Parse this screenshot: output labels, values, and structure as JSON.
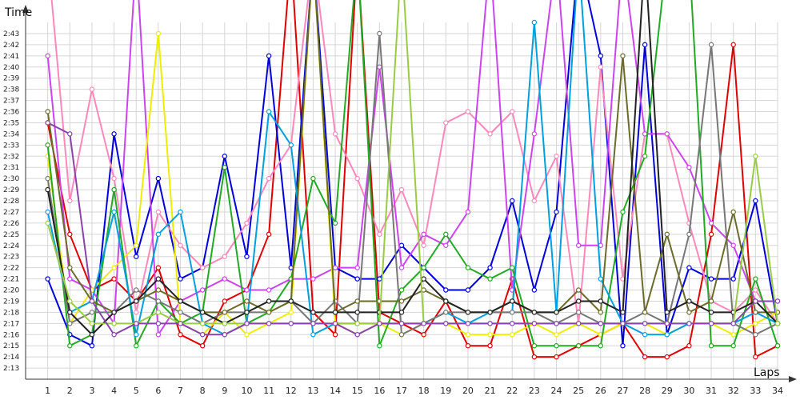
{
  "chart_data": {
    "type": "line",
    "ylabel": "Time",
    "xlabel": "Laps",
    "x": [
      1,
      2,
      3,
      4,
      5,
      6,
      7,
      8,
      9,
      10,
      11,
      12,
      13,
      14,
      15,
      16,
      17,
      18,
      19,
      20,
      21,
      22,
      23,
      24,
      25,
      26,
      27,
      28,
      29,
      30,
      31,
      32,
      33,
      34
    ],
    "xlim": [
      0,
      34
    ],
    "ylim": [
      "2:12",
      "2:44"
    ],
    "y_ticks": [
      "2:13",
      "2:14",
      "2:15",
      "2:16",
      "2:17",
      "2:18",
      "2:19",
      "2:20",
      "2:21",
      "2:22",
      "2:23",
      "2:24",
      "2:25",
      "2:26",
      "2:27",
      "2:28",
      "2:29",
      "2:30",
      "2:31",
      "2:32",
      "2:33",
      "2:34",
      "2:35",
      "2:36",
      "2:37",
      "2:38",
      "2:39",
      "2:40",
      "2:41",
      "2:42",
      "2:43"
    ],
    "grid": true,
    "series": [
      {
        "color": "#e00000",
        "values": [
          "2:35",
          "2:25",
          "2:20",
          "2:21",
          "2:19",
          "2:22",
          "2:16",
          "2:15",
          "2:19",
          "2:20",
          "2:25",
          "2:50",
          "2:18",
          "2:16",
          "2:50",
          "2:18",
          "2:17",
          "2:16",
          "2:19",
          "2:15",
          "2:15",
          "2:21",
          "2:14",
          "2:14",
          "2:15",
          "2:16",
          "2:17",
          "2:14",
          "2:14",
          "2:15",
          "2:25",
          "2:42",
          "2:14",
          "2:15"
        ]
      },
      {
        "color": "#0000dd",
        "values": [
          "2:21",
          "2:16",
          "2:15",
          "2:34",
          "2:23",
          "2:30",
          "2:21",
          "2:22",
          "2:32",
          "2:23",
          "2:41",
          "2:22",
          "2:50",
          "2:22",
          "2:21",
          "2:21",
          "2:24",
          "2:22",
          "2:20",
          "2:20",
          "2:22",
          "2:28",
          "2:20",
          "2:27",
          "2:50",
          "2:41",
          "2:15",
          "2:42",
          "2:16",
          "2:22",
          "2:21",
          "2:21",
          "2:28",
          "2:17"
        ]
      },
      {
        "color": "#ff88bb",
        "values": [
          "2:50",
          "2:28",
          "2:38",
          "2:30",
          "2:18",
          "2:27",
          "2:24",
          "2:22",
          "2:23",
          "2:26",
          "2:30",
          "2:33",
          "2:50",
          "2:34",
          "2:30",
          "2:25",
          "2:29",
          "2:24",
          "2:35",
          "2:36",
          "2:34",
          "2:36",
          "2:28",
          "2:32",
          "2:17",
          "2:40",
          "2:21",
          "2:34",
          "2:34",
          "2:26",
          "2:19",
          "2:18",
          "2:20",
          "2:17"
        ]
      },
      {
        "color": "#cc44ee",
        "values": [
          "2:41",
          "2:21",
          "2:20",
          "2:17",
          "2:50",
          "2:16",
          "2:19",
          "2:20",
          "2:21",
          "2:20",
          "2:20",
          "2:21",
          "2:21",
          "2:22",
          "2:22",
          "2:40",
          "2:22",
          "2:25",
          "2:24",
          "2:27",
          "2:50",
          "2:20",
          "2:34",
          "2:50",
          "2:24",
          "2:24",
          "2:50",
          "2:34",
          "2:34",
          "2:31",
          "2:26",
          "2:24",
          "2:19",
          "2:19"
        ]
      },
      {
        "color": "#eeee00",
        "values": [
          "2:32",
          "2:17",
          "2:20",
          "2:22",
          "2:24",
          "2:43",
          "2:17",
          "2:16",
          "2:18",
          "2:16",
          "2:17",
          "2:18",
          "2:50",
          "2:17",
          "2:16",
          "2:17",
          "2:16",
          "2:17",
          "2:17",
          "2:16",
          "2:16",
          "2:16",
          "2:17",
          "2:16",
          "2:17",
          "2:16",
          "2:17",
          "2:17",
          "2:16",
          "2:17",
          "2:17",
          "2:16",
          "2:17",
          "2:18"
        ]
      },
      {
        "color": "#22aa22",
        "values": [
          "2:33",
          "2:15",
          "2:16",
          "2:29",
          "2:15",
          "2:19",
          "2:17",
          "2:18",
          "2:31",
          "2:17",
          "2:18",
          "2:21",
          "2:30",
          "2:26",
          "2:50",
          "2:15",
          "2:20",
          "2:22",
          "2:25",
          "2:22",
          "2:21",
          "2:22",
          "2:15",
          "2:15",
          "2:15",
          "2:15",
          "2:27",
          "2:32",
          "2:50",
          "2:50",
          "2:15",
          "2:15",
          "2:21",
          "2:15"
        ]
      },
      {
        "color": "#00a0e0",
        "values": [
          "2:27",
          "2:18",
          "2:19",
          "2:27",
          "2:16",
          "2:25",
          "2:27",
          "2:17",
          "2:16",
          "2:17",
          "2:36",
          "2:33",
          "2:16",
          "2:17",
          "2:17",
          "2:17",
          "2:17",
          "2:17",
          "2:18",
          "2:17",
          "2:18",
          "2:18",
          "2:44",
          "2:18",
          "2:50",
          "2:21",
          "2:17",
          "2:16",
          "2:16",
          "2:17",
          "2:17",
          "2:17",
          "2:18",
          "2:17"
        ]
      },
      {
        "color": "#777777",
        "values": [
          "2:30",
          "2:17",
          "2:18",
          "2:18",
          "2:20",
          "2:19",
          "2:18",
          "2:17",
          "2:18",
          "2:18",
          "2:18",
          "2:19",
          "2:17",
          "2:19",
          "2:17",
          "2:43",
          "2:16",
          "2:17",
          "2:18",
          "2:18",
          "2:18",
          "2:18",
          "2:18",
          "2:17",
          "2:18",
          "2:17",
          "2:17",
          "2:18",
          "2:17",
          "2:25",
          "2:42",
          "2:17",
          "2:16",
          "2:17"
        ]
      },
      {
        "color": "#6b6b2a",
        "values": [
          "2:36",
          "2:22",
          "2:19",
          "2:18",
          "2:19",
          "2:20",
          "2:19",
          "2:18",
          "2:18",
          "2:19",
          "2:18",
          "2:19",
          "2:50",
          "2:18",
          "2:19",
          "2:19",
          "2:19",
          "2:20",
          "2:19",
          "2:18",
          "2:18",
          "2:19",
          "2:18",
          "2:18",
          "2:20",
          "2:18",
          "2:41",
          "2:18",
          "2:25",
          "2:18",
          "2:19",
          "2:27",
          "2:18",
          "2:18"
        ]
      },
      {
        "color": "#222222",
        "values": [
          "2:29",
          "2:18",
          "2:16",
          "2:18",
          "2:19",
          "2:21",
          "2:19",
          "2:18",
          "2:17",
          "2:18",
          "2:19",
          "2:19",
          "2:18",
          "2:18",
          "2:18",
          "2:18",
          "2:18",
          "2:21",
          "2:19",
          "2:18",
          "2:18",
          "2:19",
          "2:18",
          "2:18",
          "2:19",
          "2:19",
          "2:18",
          "2:50",
          "2:18",
          "2:19",
          "2:18",
          "2:18",
          "2:19",
          "2:17"
        ]
      },
      {
        "color": "#99cc44",
        "values": [
          "2:26",
          "2:19",
          "2:17",
          "2:17",
          "2:17",
          "2:18",
          "2:17",
          "2:17",
          "2:17",
          "2:17",
          "2:17",
          "2:17",
          "2:17",
          "2:17",
          "2:17",
          "2:17",
          "2:50",
          "2:17",
          "2:17",
          "2:17",
          "2:17",
          "2:17",
          "2:17",
          "2:17",
          "2:17",
          "2:17",
          "2:17",
          "2:17",
          "2:17",
          "2:17",
          "2:17",
          "2:17",
          "2:32",
          "2:17"
        ]
      },
      {
        "color": "#8844aa",
        "values": [
          "2:35",
          "2:34",
          "2:19",
          "2:16",
          "2:17",
          "2:17",
          "2:17",
          "2:16",
          "2:16",
          "2:17",
          "2:17",
          "2:17",
          "2:17",
          "2:17",
          "2:16",
          "2:17",
          "2:17",
          "2:17",
          "2:17",
          "2:17",
          "2:17",
          "2:17",
          "2:17",
          "2:17",
          "2:17",
          "2:17",
          "2:17",
          "2:17",
          "2:17",
          "2:17",
          "2:17",
          "2:17",
          "2:19",
          "2:19"
        ]
      }
    ]
  }
}
